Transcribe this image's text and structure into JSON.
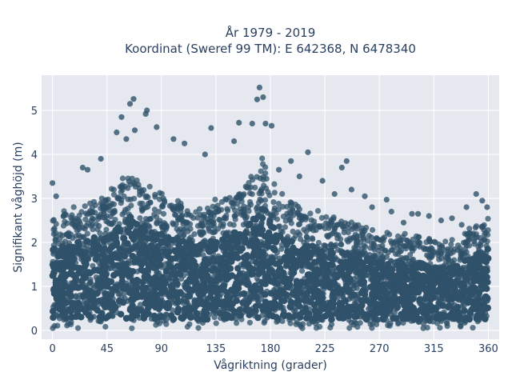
{
  "chart_data": {
    "type": "scatter",
    "title_line1": "År 1979 - 2019",
    "title_line2": "Koordinat (Sweref 99 TM): E 642368, N 6478340",
    "xlabel": "Vågriktning (grader)",
    "ylabel": "Signifikant våghöjd (m)",
    "xlim": [
      -9,
      369
    ],
    "ylim": [
      -0.2,
      5.8
    ],
    "xticks": [
      0,
      45,
      90,
      135,
      180,
      225,
      270,
      315,
      360
    ],
    "yticks": [
      0,
      1,
      2,
      3,
      4,
      5
    ],
    "grid": true,
    "marker_color": "#2f5169",
    "plot_bg": "#e5e8ef",
    "dense_band_top_m": [
      [
        0,
        2.6
      ],
      [
        30,
        2.9
      ],
      [
        50,
        3.2
      ],
      [
        65,
        3.6
      ],
      [
        80,
        3.2
      ],
      [
        100,
        2.9
      ],
      [
        120,
        2.8
      ],
      [
        140,
        3.0
      ],
      [
        160,
        3.3
      ],
      [
        175,
        3.9
      ],
      [
        190,
        3.0
      ],
      [
        210,
        2.7
      ],
      [
        240,
        2.5
      ],
      [
        270,
        2.2
      ],
      [
        300,
        2.1
      ],
      [
        330,
        2.0
      ],
      [
        360,
        2.6
      ]
    ],
    "dense_band_bottom_m": 0.1,
    "notable_points": [
      {
        "x": 171,
        "y": 5.52
      },
      {
        "x": 67,
        "y": 5.26
      },
      {
        "x": 169,
        "y": 5.25
      },
      {
        "x": 174,
        "y": 5.3
      },
      {
        "x": 64,
        "y": 5.15
      },
      {
        "x": 78,
        "y": 5.0
      },
      {
        "x": 77,
        "y": 4.92
      },
      {
        "x": 57,
        "y": 4.85
      },
      {
        "x": 165,
        "y": 4.7
      },
      {
        "x": 176,
        "y": 4.7
      },
      {
        "x": 181,
        "y": 4.65
      },
      {
        "x": 131,
        "y": 4.6
      },
      {
        "x": 154,
        "y": 4.72
      },
      {
        "x": 61,
        "y": 4.35
      },
      {
        "x": 53,
        "y": 4.5
      },
      {
        "x": 68,
        "y": 4.55
      },
      {
        "x": 86,
        "y": 4.62
      },
      {
        "x": 211,
        "y": 4.05
      },
      {
        "x": 243,
        "y": 3.85
      },
      {
        "x": 239,
        "y": 3.7
      },
      {
        "x": 187,
        "y": 3.65
      },
      {
        "x": 223,
        "y": 3.4
      },
      {
        "x": 247,
        "y": 3.2
      },
      {
        "x": 233,
        "y": 3.1
      },
      {
        "x": 258,
        "y": 3.05
      },
      {
        "x": 276,
        "y": 2.97
      },
      {
        "x": 350,
        "y": 3.1
      },
      {
        "x": 342,
        "y": 2.8
      },
      {
        "x": 355,
        "y": 2.95
      },
      {
        "x": 359,
        "y": 2.8
      },
      {
        "x": 0,
        "y": 3.35
      },
      {
        "x": 3,
        "y": 3.05
      },
      {
        "x": 25,
        "y": 3.7
      },
      {
        "x": 29,
        "y": 3.65
      },
      {
        "x": 40,
        "y": 3.9
      },
      {
        "x": 280,
        "y": 2.7
      },
      {
        "x": 297,
        "y": 2.65
      },
      {
        "x": 302,
        "y": 2.65
      },
      {
        "x": 290,
        "y": 2.45
      },
      {
        "x": 321,
        "y": 2.5
      },
      {
        "x": 330,
        "y": 2.55
      },
      {
        "x": 311,
        "y": 2.6
      },
      {
        "x": 338,
        "y": 2.4
      },
      {
        "x": 264,
        "y": 2.8
      },
      {
        "x": 126,
        "y": 4.0
      },
      {
        "x": 109,
        "y": 4.25
      },
      {
        "x": 150,
        "y": 4.3
      },
      {
        "x": 100,
        "y": 4.35
      },
      {
        "x": 197,
        "y": 3.85
      },
      {
        "x": 204,
        "y": 3.5
      }
    ]
  }
}
